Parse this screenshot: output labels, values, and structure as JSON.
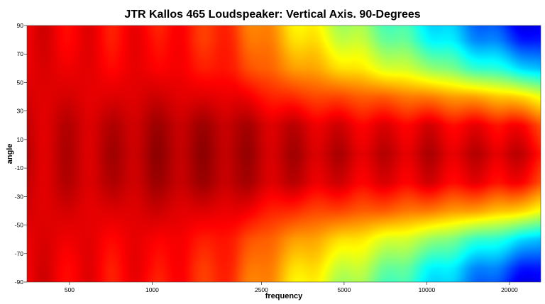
{
  "chart_data": {
    "type": "heatmap",
    "title": "JTR Kallos 465 Loudspeaker: Vertical Axis. 90-Degrees",
    "xlabel": "frequency",
    "ylabel": "angle",
    "x_scale": "log",
    "xlim": [
      350,
      26000
    ],
    "ylim": [
      -90,
      90
    ],
    "x_ticks": [
      500,
      1000,
      2500,
      5000,
      10000,
      20000
    ],
    "y_ticks": [
      90,
      70,
      50,
      30,
      10,
      -10,
      -30,
      -50,
      -70,
      -90
    ],
    "colormap": "jet",
    "grid": false,
    "legend": "none",
    "description_of_field": {
      "angles": [
        0,
        20,
        40,
        60,
        80,
        90
      ],
      "frequencies": [
        350,
        500,
        700,
        1000,
        1500,
        2000,
        2500,
        3500,
        5000,
        7000,
        10000,
        14000,
        20000,
        26000
      ],
      "relative_level_0_to_1": [
        [
          0.93,
          0.93,
          0.94,
          0.96,
          0.96,
          0.96,
          0.94,
          0.94,
          0.93,
          0.92,
          0.93,
          0.92,
          0.93,
          0.88
        ],
        [
          0.92,
          0.93,
          0.93,
          0.95,
          0.95,
          0.95,
          0.93,
          0.92,
          0.9,
          0.89,
          0.9,
          0.88,
          0.88,
          0.82
        ],
        [
          0.91,
          0.91,
          0.9,
          0.92,
          0.9,
          0.9,
          0.86,
          0.82,
          0.8,
          0.78,
          0.75,
          0.72,
          0.68,
          0.62
        ],
        [
          0.9,
          0.9,
          0.88,
          0.89,
          0.86,
          0.84,
          0.78,
          0.72,
          0.66,
          0.6,
          0.54,
          0.45,
          0.38,
          0.3
        ],
        [
          0.9,
          0.89,
          0.87,
          0.88,
          0.84,
          0.82,
          0.75,
          0.66,
          0.58,
          0.5,
          0.4,
          0.3,
          0.2,
          0.12
        ],
        [
          0.9,
          0.89,
          0.87,
          0.87,
          0.84,
          0.81,
          0.74,
          0.64,
          0.55,
          0.47,
          0.37,
          0.27,
          0.15,
          0.08
        ]
      ]
    }
  }
}
